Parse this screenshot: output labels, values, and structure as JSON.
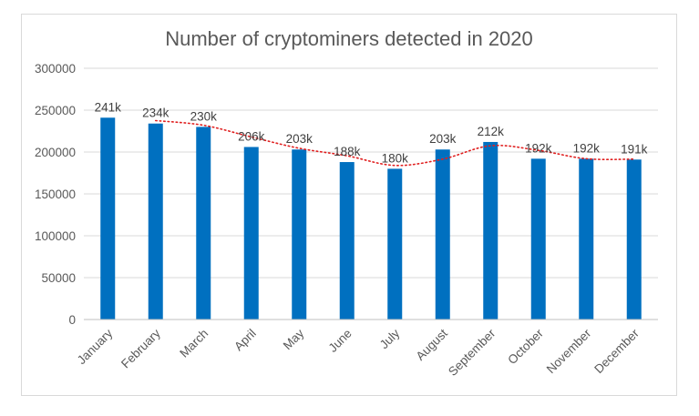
{
  "chart_data": {
    "type": "bar",
    "title": "Number of cryptominers detected in 2020",
    "categories": [
      "January",
      "February",
      "March",
      "April",
      "May",
      "June",
      "July",
      "August",
      "September",
      "October",
      "November",
      "December"
    ],
    "values": [
      241000,
      234000,
      230000,
      206000,
      203000,
      188000,
      180000,
      203000,
      212000,
      192000,
      192000,
      191000
    ],
    "data_labels": [
      "241k",
      "234k",
      "230k",
      "206k",
      "203k",
      "188k",
      "180k",
      "203k",
      "212k",
      "192k",
      "192k",
      "191k"
    ],
    "ylim": [
      0,
      300000
    ],
    "yticks": [
      "0",
      "50000",
      "100000",
      "150000",
      "200000",
      "250000",
      "300000"
    ],
    "grid": true,
    "legend": false,
    "trendline": {
      "type": "moving-average",
      "style": "dotted",
      "color": "#e02020"
    },
    "bar_color": "#0070c0"
  }
}
